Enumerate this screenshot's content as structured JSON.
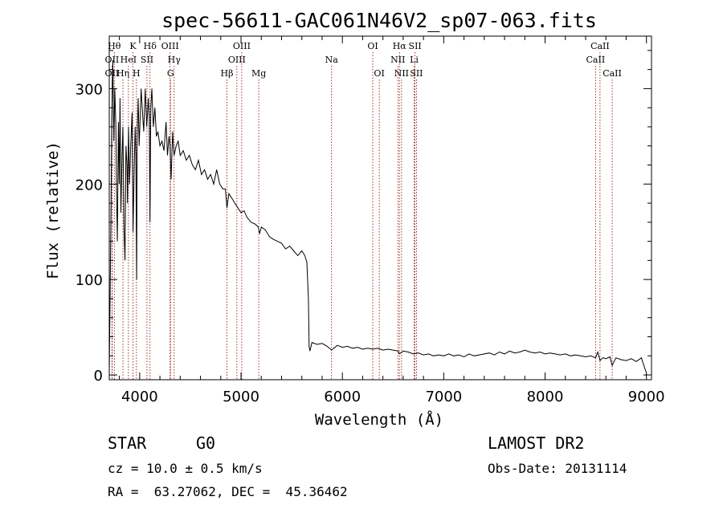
{
  "chart_data": {
    "type": "line",
    "title": "spec-56611-GAC061N46V2_sp07-063.fits",
    "xlabel": "Wavelength (Å)",
    "ylabel": "Flux (relative)",
    "xlim": [
      3700,
      9050
    ],
    "ylim": [
      -5,
      355
    ],
    "xticks": [
      4000,
      5000,
      6000,
      7000,
      8000,
      9000
    ],
    "yticks": [
      0,
      100,
      200,
      300
    ],
    "grid": false,
    "series": [
      {
        "x": [
          3700,
          3715,
          3725,
          3735,
          3745,
          3755,
          3765,
          3772,
          3780,
          3790,
          3798,
          3806,
          3815,
          3826,
          3835,
          3845,
          3855,
          3865,
          3875,
          3880,
          3890,
          3900,
          3912,
          3925,
          3935,
          3945,
          3955,
          3962,
          3970,
          3975,
          3985,
          3995,
          4005,
          4015,
          4025,
          4040,
          4055,
          4070,
          4085,
          4095,
          4102,
          4110,
          4120,
          4135,
          4150,
          4165,
          4180,
          4200,
          4220,
          4240,
          4260,
          4275,
          4290,
          4300,
          4310,
          4325,
          4340,
          4360,
          4380,
          4400,
          4430,
          4460,
          4490,
          4520,
          4550,
          4580,
          4610,
          4640,
          4670,
          4700,
          4730,
          4760,
          4790,
          4820,
          4845,
          4861,
          4880,
          4910,
          4940,
          4970,
          5000,
          5030,
          5060,
          5100,
          5140,
          5170,
          5183,
          5200,
          5240,
          5280,
          5320,
          5360,
          5400,
          5440,
          5480,
          5520,
          5560,
          5600,
          5630,
          5650,
          5665,
          5672,
          5680,
          5700,
          5750,
          5800,
          5850,
          5893,
          5950,
          6000,
          6050,
          6100,
          6150,
          6200,
          6250,
          6300,
          6350,
          6400,
          6450,
          6500,
          6550,
          6563,
          6600,
          6650,
          6700,
          6750,
          6800,
          6850,
          6900,
          6950,
          7000,
          7050,
          7100,
          7150,
          7200,
          7250,
          7300,
          7350,
          7400,
          7450,
          7500,
          7550,
          7600,
          7650,
          7700,
          7750,
          7800,
          7850,
          7900,
          7950,
          8000,
          8050,
          8100,
          8150,
          8200,
          8250,
          8300,
          8350,
          8400,
          8450,
          8498,
          8520,
          8542,
          8570,
          8600,
          8640,
          8662,
          8700,
          8750,
          8800,
          8850,
          8900,
          8950,
          8980,
          9000
        ],
        "y": [
          0,
          150,
          270,
          330,
          245,
          300,
          260,
          190,
          140,
          265,
          200,
          290,
          170,
          230,
          260,
          155,
          120,
          240,
          220,
          180,
          260,
          200,
          240,
          275,
          150,
          210,
          260,
          230,
          100,
          250,
          290,
          240,
          270,
          300,
          280,
          255,
          300,
          260,
          290,
          270,
          160,
          280,
          300,
          260,
          280,
          250,
          255,
          240,
          245,
          235,
          265,
          230,
          250,
          240,
          205,
          255,
          230,
          240,
          245,
          230,
          235,
          225,
          230,
          220,
          215,
          225,
          210,
          215,
          205,
          210,
          200,
          215,
          200,
          195,
          195,
          175,
          190,
          185,
          180,
          175,
          170,
          172,
          165,
          160,
          158,
          155,
          148,
          155,
          152,
          145,
          142,
          140,
          138,
          132,
          135,
          130,
          125,
          130,
          125,
          118,
          80,
          30,
          25,
          34,
          32,
          33,
          30,
          26,
          31,
          29,
          30,
          28,
          29,
          27,
          28,
          27,
          28,
          26,
          27,
          26,
          25,
          22,
          25,
          24,
          22,
          23,
          21,
          22,
          20,
          21,
          20,
          22,
          20,
          21,
          19,
          22,
          20,
          21,
          22,
          23,
          21,
          24,
          22,
          25,
          23,
          24,
          26,
          24,
          23,
          24,
          22,
          23,
          22,
          21,
          22,
          20,
          21,
          20,
          19,
          20,
          18,
          24,
          15,
          18,
          17,
          19,
          10,
          18,
          16,
          15,
          17,
          14,
          18,
          8,
          2
        ]
      }
    ],
    "lines": [
      {
        "label": "OII",
        "x": 3727,
        "row": 1
      },
      {
        "label": "OII",
        "x": 3727,
        "row": 2
      },
      {
        "label": "Hθ",
        "x": 3750,
        "row": 0
      },
      {
        "label": "Hη",
        "x": 3835,
        "row": 2
      },
      {
        "label": "HeI",
        "x": 3889,
        "row": 1
      },
      {
        "label": "K",
        "x": 3934,
        "row": 0
      },
      {
        "label": "H",
        "x": 3968,
        "row": 2
      },
      {
        "label": "SII",
        "x": 4072,
        "row": 1
      },
      {
        "label": "Hδ",
        "x": 4102,
        "row": 0
      },
      {
        "label": "OIII",
        "x": 4300,
        "row": 0
      },
      {
        "label": "Hγ",
        "x": 4340,
        "row": 1
      },
      {
        "label": "G",
        "x": 4305,
        "row": 2
      },
      {
        "label": "Hβ",
        "x": 4861,
        "row": 2
      },
      {
        "label": "OIII",
        "x": 4959,
        "row": 1
      },
      {
        "label": "OIII",
        "x": 5007,
        "row": 0
      },
      {
        "label": "Mg",
        "x": 5175,
        "row": 2
      },
      {
        "label": "Na",
        "x": 5893,
        "row": 1
      },
      {
        "label": "OI",
        "x": 6300,
        "row": 0
      },
      {
        "label": "OI",
        "x": 6364,
        "row": 2
      },
      {
        "label": "NII",
        "x": 6548,
        "row": 1
      },
      {
        "label": "Hα",
        "x": 6563,
        "row": 0
      },
      {
        "label": "NII",
        "x": 6584,
        "row": 2
      },
      {
        "label": "SII",
        "x": 6717,
        "row": 0
      },
      {
        "label": "Li",
        "x": 6708,
        "row": 1
      },
      {
        "label": "SII",
        "x": 6731,
        "row": 2
      },
      {
        "label": "CaII",
        "x": 8498,
        "row": 1
      },
      {
        "label": "CaII",
        "x": 8542,
        "row": 0
      },
      {
        "label": "CaII",
        "x": 8662,
        "row": 2
      }
    ]
  },
  "info": {
    "class_label": "STAR",
    "subclass": "G0",
    "survey": "LAMOST DR2",
    "redshift": "cz = 10.0 ± 0.5 km/s",
    "obs_date": "Obs-Date: 20131114",
    "coords": "RA =  63.27062, DEC =  45.36462"
  }
}
